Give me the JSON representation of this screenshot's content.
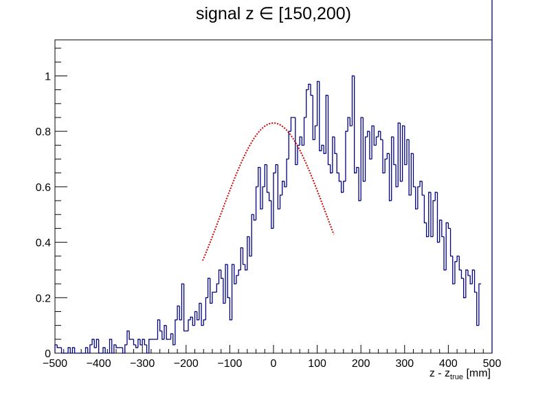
{
  "chart_data": {
    "type": "bar",
    "title": "signal z ∈ [150,200)",
    "xlabel": {
      "main": "z - z",
      "sub": "true",
      "unit": "[mm]"
    },
    "ylabel": "",
    "xlim": [
      -500,
      500
    ],
    "ylim": [
      0,
      1.13
    ],
    "grid": false,
    "colors": {
      "histogram": "#000080",
      "fit": "#cc0000"
    },
    "x_ticks": [
      "−500",
      "−400",
      "−300",
      "−200",
      "−100",
      "0",
      "100",
      "200",
      "300",
      "400",
      "500"
    ],
    "y_ticks": [
      "0",
      "0.2",
      "0.4",
      "0.6",
      "0.8",
      "1"
    ],
    "series": [
      {
        "bin_width": 5,
        "bin_low_edges": [
          -500,
          -495,
          -490,
          -485,
          -480,
          -475,
          -470,
          -465,
          -460,
          -455,
          -450,
          -445,
          -440,
          -435,
          -430,
          -425,
          -420,
          -415,
          -410,
          -405,
          -400,
          -395,
          -390,
          -385,
          -380,
          -375,
          -370,
          -365,
          -360,
          -355,
          -350,
          -345,
          -340,
          -335,
          -330,
          -325,
          -320,
          -315,
          -310,
          -305,
          -300,
          -295,
          -290,
          -285,
          -280,
          -275,
          -270,
          -265,
          -260,
          -255,
          -250,
          -245,
          -240,
          -235,
          -230,
          -225,
          -220,
          -215,
          -210,
          -205,
          -200,
          -195,
          -190,
          -185,
          -180,
          -175,
          -170,
          -165,
          -160,
          -155,
          -150,
          -145,
          -140,
          -135,
          -130,
          -125,
          -120,
          -115,
          -110,
          -105,
          -100,
          -95,
          -90,
          -85,
          -80,
          -75,
          -70,
          -65,
          -60,
          -55,
          -50,
          -45,
          -40,
          -35,
          -30,
          -25,
          -20,
          -15,
          -10,
          -5,
          0,
          5,
          10,
          15,
          20,
          25,
          30,
          35,
          40,
          45,
          50,
          55,
          60,
          65,
          70,
          75,
          80,
          85,
          90,
          95,
          100,
          105,
          110,
          115,
          120,
          125,
          130,
          135,
          140,
          145,
          150,
          155,
          160,
          165,
          170,
          175,
          180,
          185,
          190,
          195,
          200,
          205,
          210,
          215,
          220,
          225,
          230,
          235,
          240,
          245,
          250,
          255,
          260,
          265,
          270,
          275,
          280,
          285,
          290,
          295,
          300,
          305,
          310,
          315,
          320,
          325,
          330,
          335,
          340,
          345,
          350,
          355,
          360,
          365,
          370,
          375,
          380,
          385,
          390,
          395,
          400,
          405,
          410,
          415,
          420,
          425,
          430,
          435,
          440,
          445,
          450,
          455,
          460,
          465,
          470,
          475,
          480,
          485,
          490,
          495
        ],
        "values": [
          0.03,
          0.02,
          0.02,
          0.0,
          0.0,
          0.0,
          0.02,
          0.0,
          0.02,
          0.0,
          0.0,
          0.0,
          0.0,
          0.0,
          0.02,
          0.0,
          0.03,
          0.05,
          0.02,
          0.05,
          0.0,
          0.0,
          0.02,
          0.0,
          0.0,
          0.05,
          0.0,
          0.03,
          0.02,
          0.02,
          0.02,
          0.0,
          0.03,
          0.08,
          0.05,
          0.05,
          0.03,
          0.02,
          0.05,
          0.03,
          0.05,
          0.03,
          0.0,
          0.05,
          0.05,
          0.05,
          0.05,
          0.12,
          0.08,
          0.05,
          0.1,
          0.05,
          0.05,
          0.07,
          0.03,
          0.12,
          0.17,
          0.12,
          0.25,
          0.08,
          0.08,
          0.12,
          0.13,
          0.1,
          0.15,
          0.12,
          0.18,
          0.1,
          0.12,
          0.2,
          0.27,
          0.18,
          0.22,
          0.22,
          0.25,
          0.3,
          0.27,
          0.18,
          0.32,
          0.2,
          0.12,
          0.32,
          0.25,
          0.28,
          0.3,
          0.38,
          0.32,
          0.3,
          0.42,
          0.35,
          0.5,
          0.48,
          0.6,
          0.67,
          0.52,
          0.6,
          0.68,
          0.58,
          0.55,
          0.45,
          0.65,
          0.68,
          0.52,
          0.57,
          0.62,
          0.6,
          0.7,
          0.8,
          0.85,
          0.85,
          0.68,
          0.75,
          0.78,
          0.75,
          0.85,
          0.95,
          0.97,
          0.93,
          0.77,
          0.82,
          0.98,
          0.73,
          0.75,
          0.72,
          0.93,
          0.68,
          0.65,
          0.78,
          0.72,
          0.65,
          0.62,
          0.58,
          0.62,
          0.8,
          0.85,
          0.82,
          1.0,
          0.65,
          0.67,
          0.55,
          0.85,
          0.62,
          0.78,
          0.8,
          0.7,
          0.82,
          0.75,
          0.78,
          0.8,
          0.77,
          0.65,
          0.7,
          0.72,
          0.55,
          0.78,
          0.68,
          0.6,
          0.83,
          0.62,
          0.82,
          0.68,
          0.77,
          0.57,
          0.72,
          0.6,
          0.52,
          0.6,
          0.62,
          0.57,
          0.47,
          0.42,
          0.58,
          0.42,
          0.55,
          0.58,
          0.4,
          0.48,
          0.42,
          0.3,
          0.47,
          0.45,
          0.35,
          0.25,
          0.33,
          0.35,
          0.3,
          0.27,
          0.2,
          0.3,
          0.28,
          0.25,
          0.3,
          0.22,
          0.1,
          0.25
        ],
        "note_values_adjusted_by_shape": true
      }
    ],
    "fit": {
      "x_range": [
        -162,
        138
      ],
      "peak": 0.83,
      "mean": 0,
      "sigma": 120
    }
  }
}
